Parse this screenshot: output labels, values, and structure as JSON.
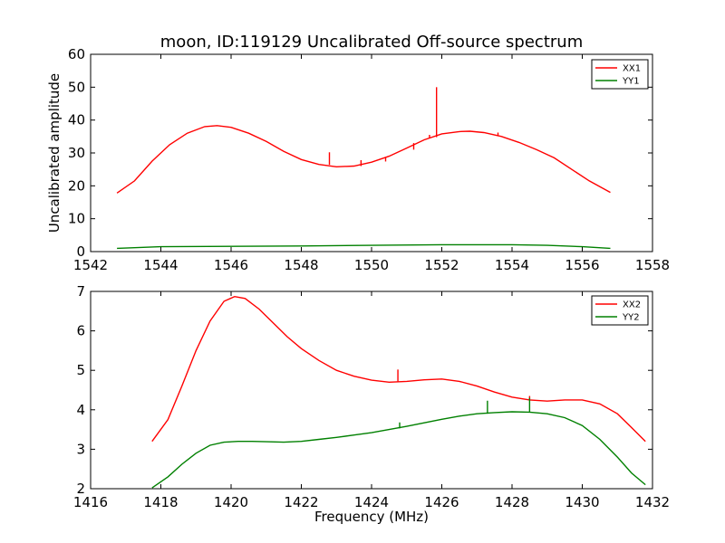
{
  "figure": {
    "title": "moon, ID:119129 Uncalibrated Off-source spectrum",
    "xlabel": "Frequency (MHz)",
    "ylabel": "Uncalibrated amplitude"
  },
  "colors": {
    "red": "#ff0000",
    "green": "#008000",
    "axis": "#000000"
  },
  "chart_data": [
    {
      "type": "line",
      "title": "moon, ID:119129 Uncalibrated Off-source spectrum",
      "xlabel": "",
      "ylabel": "Uncalibrated amplitude",
      "xlim": [
        1542,
        1558
      ],
      "ylim": [
        0,
        60
      ],
      "xticks": [
        1542,
        1544,
        1546,
        1548,
        1550,
        1552,
        1554,
        1556,
        1558
      ],
      "yticks": [
        0,
        10,
        20,
        30,
        40,
        50,
        60
      ],
      "legend_position": "top-right",
      "series": [
        {
          "name": "XX1",
          "color": "#ff0000",
          "x": [
            1542.75,
            1543.25,
            1543.75,
            1544.25,
            1544.75,
            1545.25,
            1545.6,
            1546.0,
            1546.5,
            1547.0,
            1547.5,
            1548.0,
            1548.5,
            1549.0,
            1549.5,
            1550.0,
            1550.5,
            1551.0,
            1551.5,
            1552.0,
            1552.5,
            1552.8,
            1553.2,
            1553.7,
            1554.2,
            1554.7,
            1555.2,
            1555.7,
            1556.2,
            1556.8
          ],
          "y": [
            17.8,
            21.5,
            27.5,
            32.5,
            36.0,
            38.0,
            38.3,
            37.8,
            36.0,
            33.5,
            30.5,
            28.0,
            26.5,
            25.8,
            26.0,
            27.2,
            29.0,
            31.5,
            34.0,
            35.8,
            36.5,
            36.6,
            36.2,
            35.0,
            33.2,
            31.0,
            28.5,
            25.0,
            21.5,
            18.0
          ],
          "spikes": [
            {
              "x": 1548.8,
              "base": 26.4,
              "top": 30.2
            },
            {
              "x": 1549.7,
              "base": 26.0,
              "top": 27.8
            },
            {
              "x": 1550.4,
              "base": 27.4,
              "top": 28.5
            },
            {
              "x": 1551.2,
              "base": 31.0,
              "top": 33.0
            },
            {
              "x": 1551.65,
              "base": 34.4,
              "top": 35.5
            },
            {
              "x": 1551.85,
              "base": 34.8,
              "top": 50.0
            },
            {
              "x": 1553.6,
              "base": 35.1,
              "top": 36.2
            }
          ]
        },
        {
          "name": "YY1",
          "color": "#008000",
          "x": [
            1542.75,
            1544,
            1546,
            1548,
            1550,
            1552,
            1553,
            1554,
            1555,
            1556,
            1556.8
          ],
          "y": [
            1.0,
            1.5,
            1.6,
            1.7,
            1.9,
            2.1,
            2.1,
            2.1,
            1.9,
            1.5,
            1.0
          ],
          "spikes": []
        }
      ]
    },
    {
      "type": "line",
      "title": "",
      "xlabel": "Frequency (MHz)",
      "ylabel": "",
      "xlim": [
        1416,
        1432
      ],
      "ylim": [
        2,
        7
      ],
      "xticks": [
        1416,
        1418,
        1420,
        1422,
        1424,
        1426,
        1428,
        1430,
        1432
      ],
      "yticks": [
        2,
        3,
        4,
        5,
        6,
        7
      ],
      "legend_position": "top-right",
      "series": [
        {
          "name": "XX2",
          "color": "#ff0000",
          "x": [
            1417.75,
            1418.2,
            1418.6,
            1419.0,
            1419.4,
            1419.8,
            1420.1,
            1420.4,
            1420.8,
            1421.2,
            1421.6,
            1422.0,
            1422.5,
            1423.0,
            1423.5,
            1424.0,
            1424.5,
            1425.0,
            1425.5,
            1426.0,
            1426.5,
            1427.0,
            1427.5,
            1428.0,
            1428.5,
            1429.0,
            1429.5,
            1430.0,
            1430.5,
            1431.0,
            1431.4,
            1431.8
          ],
          "y": [
            3.2,
            3.75,
            4.6,
            5.5,
            6.25,
            6.75,
            6.87,
            6.82,
            6.55,
            6.2,
            5.85,
            5.55,
            5.25,
            5.0,
            4.85,
            4.75,
            4.7,
            4.72,
            4.76,
            4.78,
            4.72,
            4.6,
            4.45,
            4.32,
            4.25,
            4.22,
            4.25,
            4.25,
            4.15,
            3.9,
            3.55,
            3.2
          ],
          "spikes": [
            {
              "x": 1424.75,
              "base": 4.72,
              "top": 5.02
            },
            {
              "x": 1428.5,
              "base": 4.25,
              "top": 4.35
            }
          ]
        },
        {
          "name": "YY2",
          "color": "#008000",
          "x": [
            1417.75,
            1418.2,
            1418.6,
            1419.0,
            1419.4,
            1419.8,
            1420.2,
            1420.6,
            1421.0,
            1421.5,
            1422.0,
            1422.5,
            1423.0,
            1423.5,
            1424.0,
            1424.5,
            1425.0,
            1425.5,
            1426.0,
            1426.5,
            1427.0,
            1427.5,
            1428.0,
            1428.5,
            1429.0,
            1429.5,
            1430.0,
            1430.5,
            1431.0,
            1431.4,
            1431.8
          ],
          "y": [
            2.02,
            2.3,
            2.62,
            2.9,
            3.1,
            3.18,
            3.2,
            3.2,
            3.19,
            3.18,
            3.2,
            3.25,
            3.3,
            3.36,
            3.42,
            3.5,
            3.58,
            3.67,
            3.76,
            3.84,
            3.9,
            3.93,
            3.95,
            3.94,
            3.9,
            3.8,
            3.6,
            3.25,
            2.8,
            2.4,
            2.1
          ],
          "spikes": [
            {
              "x": 1424.8,
              "base": 3.53,
              "top": 3.68
            },
            {
              "x": 1427.3,
              "base": 3.9,
              "top": 4.23
            },
            {
              "x": 1428.5,
              "base": 3.94,
              "top": 4.3
            }
          ]
        }
      ]
    }
  ]
}
